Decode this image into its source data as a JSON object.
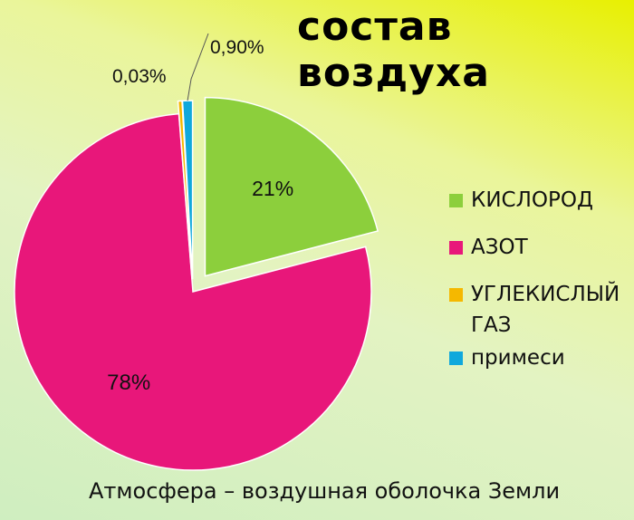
{
  "slide": {
    "title": "состав воздуха",
    "caption": "Атмосфера – воздушная оболочка Земли"
  },
  "chart_data": {
    "type": "pie",
    "title": "состав воздуха",
    "start_angle_deg": 0,
    "direction": "clockwise",
    "exploded": true,
    "slices": [
      {
        "name": "КИСЛОРОД",
        "value": 21,
        "label": "21%",
        "color": "#8ccf3c"
      },
      {
        "name": "АЗОТ",
        "value": 78,
        "label": "78%",
        "color": "#e8177a"
      },
      {
        "name": "УГЛЕКИСЛЫЙ ГАЗ",
        "value": 0.03,
        "label": "0,03%",
        "color": "#f5b800"
      },
      {
        "name": "примеси",
        "value": 0.9,
        "label": "0,90%",
        "color": "#10a8dc"
      }
    ],
    "legend_position": "right"
  }
}
